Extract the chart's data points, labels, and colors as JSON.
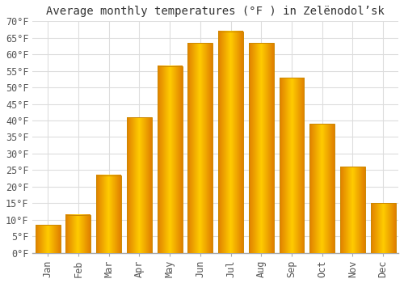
{
  "title": "Average monthly temperatures (°F ) in Zelënodol’sk",
  "months": [
    "Jan",
    "Feb",
    "Mar",
    "Apr",
    "May",
    "Jun",
    "Jul",
    "Aug",
    "Sep",
    "Oct",
    "Nov",
    "Dec"
  ],
  "values": [
    8.5,
    11.5,
    23.5,
    41.0,
    56.5,
    63.5,
    67.0,
    63.5,
    53.0,
    39.0,
    26.0,
    15.0
  ],
  "bar_color_light": "#FFD966",
  "bar_color_mid": "#FFAA00",
  "bar_color_dark": "#E08000",
  "ylim": [
    0,
    70
  ],
  "yticks": [
    0,
    5,
    10,
    15,
    20,
    25,
    30,
    35,
    40,
    45,
    50,
    55,
    60,
    65,
    70
  ],
  "grid_color": "#dddddd",
  "bg_color": "#ffffff",
  "fig_bg_color": "#ffffff",
  "title_fontsize": 10,
  "tick_fontsize": 8.5
}
